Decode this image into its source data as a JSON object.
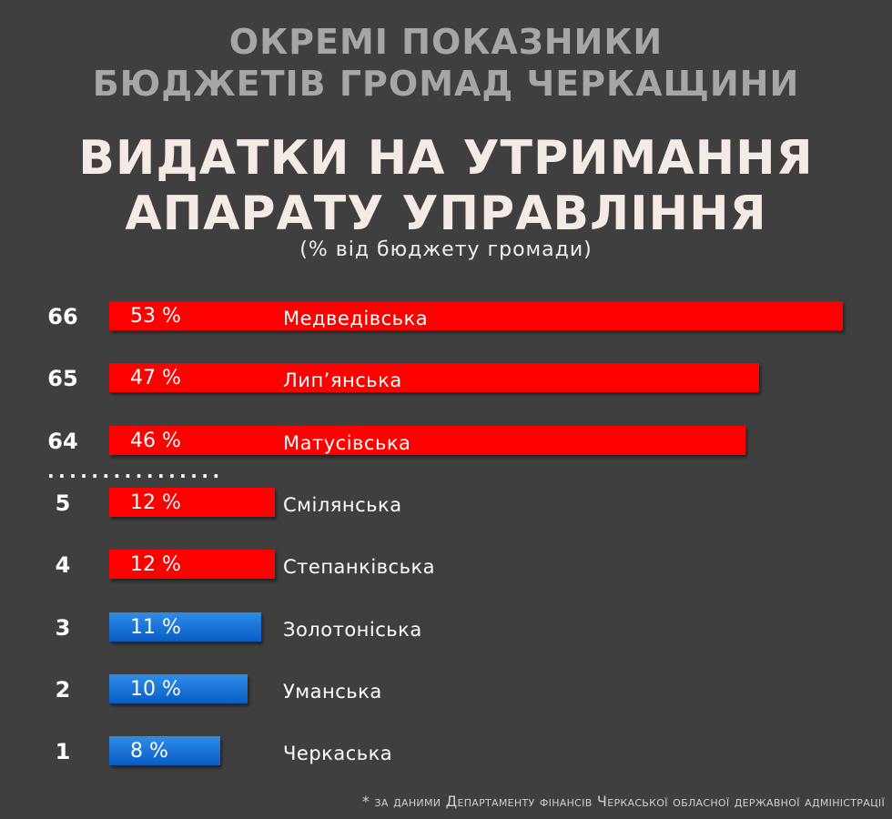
{
  "header": {
    "title_line1": "ОКРЕМІ ПОКАЗНИКИ",
    "title_line2": "БЮДЖЕТІВ ГРОМАД ЧЕРКАЩИНИ",
    "main_line1": "ВИДАТКИ НА УТРИМАННЯ",
    "main_line2": "АПАРАТУ УПРАВЛІННЯ",
    "subtitle": "(% від бюджету громади)"
  },
  "separator": "................",
  "footnote": "* за даними Департаменту фінансів Черкаської обласної державної адміністрації",
  "colors": {
    "red": "#ff0000",
    "blue": "#1a74d6",
    "background": "#3f3f3f"
  },
  "chart_data": {
    "type": "bar",
    "orientation": "horizontal",
    "unit": "%",
    "rows": [
      {
        "rank": "66",
        "value": 53,
        "label": "53 %",
        "name": "Медведівська",
        "color": "red"
      },
      {
        "rank": "65",
        "value": 47,
        "label": "47 %",
        "name": "Лип’янська",
        "color": "red"
      },
      {
        "rank": "64",
        "value": 46,
        "label": "46 %",
        "name": "Матусівська",
        "color": "red"
      },
      {
        "rank": "5",
        "value": 12,
        "label": "12 %",
        "name": "Смілянська",
        "color": "red"
      },
      {
        "rank": "4",
        "value": 12,
        "label": "12 %",
        "name": "Степанківська",
        "color": "red"
      },
      {
        "rank": "3",
        "value": 11,
        "label": "11 %",
        "name": "Золотоніська",
        "color": "blue"
      },
      {
        "rank": "2",
        "value": 10,
        "label": "10 %",
        "name": "Уманська",
        "color": "blue"
      },
      {
        "rank": "1",
        "value": 8,
        "label": "8 %",
        "name": "Черкаська",
        "color": "blue"
      }
    ]
  }
}
